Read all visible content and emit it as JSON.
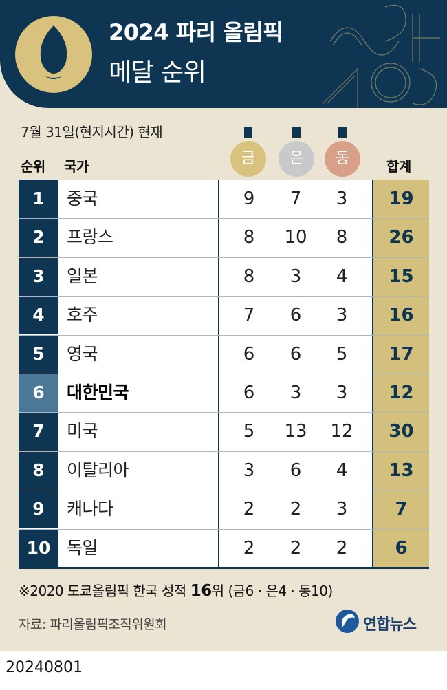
{
  "header": {
    "title": "2024 파리 올림픽",
    "subtitle": "메달 순위"
  },
  "as_of": "7월 31일(현지시간) 현재",
  "columns": {
    "rank": "순위",
    "country": "국가",
    "gold": "금",
    "silver": "은",
    "bronze": "동",
    "total": "합계"
  },
  "colors": {
    "navy": "#0e3551",
    "gold": "#d9c27d",
    "silver": "#c8c9cb",
    "bronze": "#d8a088",
    "highlight": "#4c7897",
    "total_bg": "#d4c07d"
  },
  "chart_data": {
    "type": "table",
    "columns": [
      "순위",
      "국가",
      "금",
      "은",
      "동",
      "합계"
    ],
    "highlight_country": "대한민국",
    "rows": [
      {
        "rank": "1",
        "country": "중국",
        "gold": 9,
        "silver": 7,
        "bronze": 3,
        "total": 19
      },
      {
        "rank": "2",
        "country": "프랑스",
        "gold": 8,
        "silver": 10,
        "bronze": 8,
        "total": 26
      },
      {
        "rank": "3",
        "country": "일본",
        "gold": 8,
        "silver": 3,
        "bronze": 4,
        "total": 15
      },
      {
        "rank": "4",
        "country": "호주",
        "gold": 7,
        "silver": 6,
        "bronze": 3,
        "total": 16
      },
      {
        "rank": "5",
        "country": "영국",
        "gold": 6,
        "silver": 6,
        "bronze": 5,
        "total": 17
      },
      {
        "rank": "6",
        "country": "대한민국",
        "gold": 6,
        "silver": 3,
        "bronze": 3,
        "total": 12
      },
      {
        "rank": "7",
        "country": "미국",
        "gold": 5,
        "silver": 13,
        "bronze": 12,
        "total": 30
      },
      {
        "rank": "8",
        "country": "이탈리아",
        "gold": 3,
        "silver": 6,
        "bronze": 4,
        "total": 13
      },
      {
        "rank": "9",
        "country": "캐나다",
        "gold": 2,
        "silver": 2,
        "bronze": 3,
        "total": 7
      },
      {
        "rank": "10",
        "country": "독일",
        "gold": 2,
        "silver": 2,
        "bronze": 2,
        "total": 6
      }
    ]
  },
  "note": {
    "prefix": "※2020 도쿄올림픽 한국 성적 ",
    "rank": "16",
    "suffix": "위 (금6 · 은4 · 동10)"
  },
  "source": "자료: 파리올림픽조직위원회",
  "logo": {
    "text": "연합뉴스",
    "icon": "yonhap-logo-icon"
  },
  "date": "20240801"
}
